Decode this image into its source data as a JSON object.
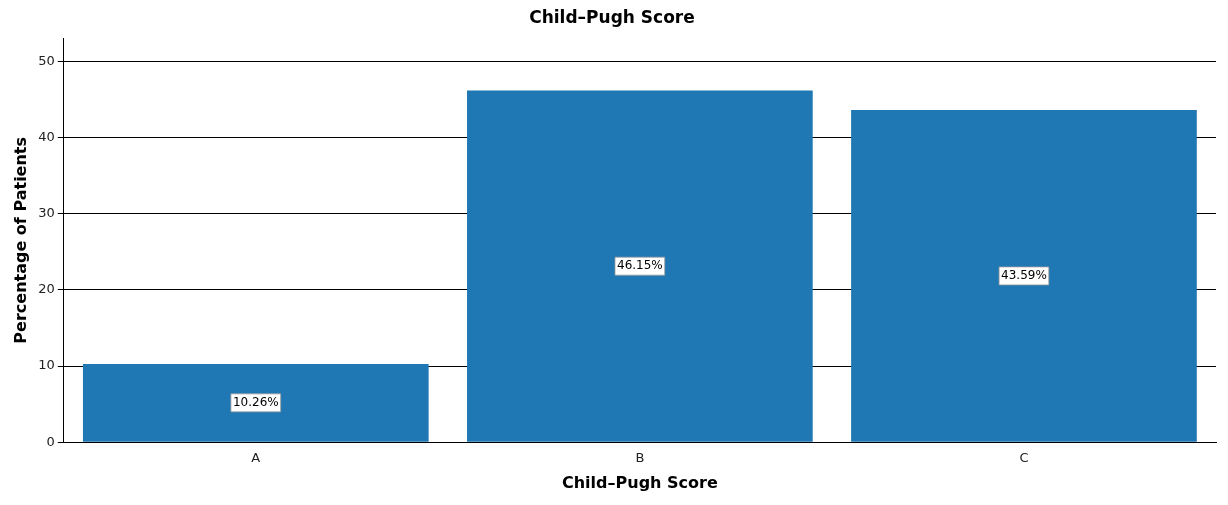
{
  "chart_data": {
    "type": "bar",
    "title": "Child–Pugh Score",
    "xlabel": "Child–Pugh Score",
    "ylabel": "Percentage of Patients",
    "categories": [
      "A",
      "B",
      "C"
    ],
    "values": [
      10.26,
      46.15,
      43.59
    ],
    "value_labels": [
      "10.26%",
      "46.15%",
      "43.59%"
    ],
    "color": "#1f77b4",
    "ylim": [
      0,
      53
    ],
    "yticks": [
      0,
      10,
      20,
      30,
      40,
      50
    ],
    "grid": "y"
  }
}
